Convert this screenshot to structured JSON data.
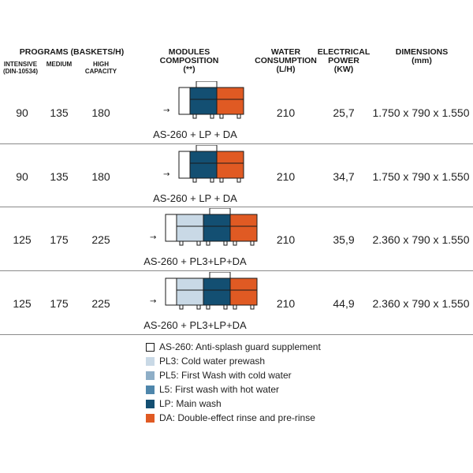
{
  "header": {
    "programs": "PROGRAMS (BASKETS/H)",
    "intensive": "INTENSIVE",
    "intensive_sub": "(DIN-10534)",
    "medium": "MEDIUM",
    "high1": "HIGH",
    "high2": "CAPACITY",
    "modules1": "MODULES",
    "modules2": "COMPOSITION",
    "modules3": "(**)",
    "water1": "WATER",
    "water2": "CONSUMPTION",
    "water3": "(L/H)",
    "elec1": "ELECTRICAL",
    "elec2": "POWER",
    "elec3": "(KW)",
    "dim1": "DIMENSIONS",
    "dim2": "(mm)"
  },
  "rows": [
    {
      "intensive": "90",
      "medium": "135",
      "high": "180",
      "caption": "AS-260 + LP + DA",
      "water": "210",
      "power": "25,7",
      "dimensions": "1.750 x 790 x 1.550",
      "modules": [
        "LP",
        "DA"
      ]
    },
    {
      "intensive": "90",
      "medium": "135",
      "high": "180",
      "caption": "AS-260 + LP + DA",
      "water": "210",
      "power": "34,7",
      "dimensions": "1.750 x 790 x 1.550",
      "modules": [
        "LP",
        "DA"
      ]
    },
    {
      "intensive": "125",
      "medium": "175",
      "high": "225",
      "caption": "AS-260 + PL3+LP+DA",
      "water": "210",
      "power": "35,9",
      "dimensions": "2.360 x 790 x 1.550",
      "modules": [
        "PL3",
        "LP",
        "DA"
      ]
    },
    {
      "intensive": "125",
      "medium": "175",
      "high": "225",
      "caption": "AS-260 + PL3+LP+DA",
      "water": "210",
      "power": "44,9",
      "dimensions": "2.360 x 790 x 1.550",
      "modules": [
        "PL3",
        "LP",
        "DA"
      ]
    }
  ],
  "legend": [
    {
      "key": "AS-260",
      "label": "AS-260: Anti-splash guard supplement",
      "color": "#ffffff"
    },
    {
      "key": "PL3",
      "label": "PL3: Cold water prewash",
      "color": "#c9d9e6"
    },
    {
      "key": "PL5",
      "label": "PL5: First Wash with cold water",
      "color": "#8eaec7"
    },
    {
      "key": "L5",
      "label": "L5: First wash with hot water",
      "color": "#4e86ab"
    },
    {
      "key": "LP",
      "label": "LP: Main wash",
      "color": "#134f72"
    },
    {
      "key": "DA",
      "label": "DA: Double-effect rinse and pre-rinse",
      "color": "#e05a23"
    }
  ]
}
